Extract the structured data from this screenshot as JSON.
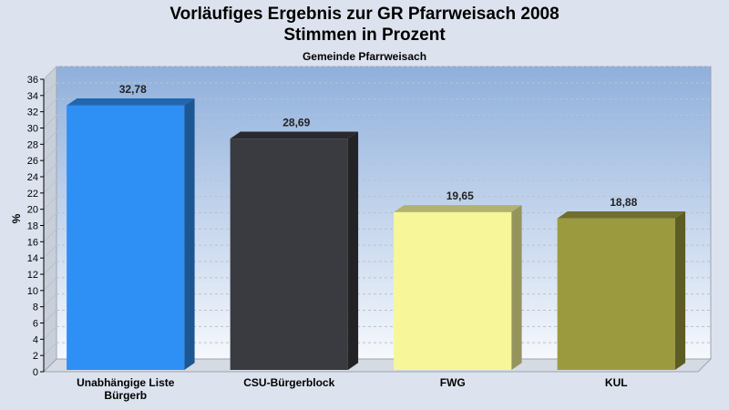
{
  "chart_data": {
    "type": "bar",
    "title_line1": "Vorläufiges Ergebnis zur GR Pfarrweisach 2008",
    "title_line2": "Stimmen in Prozent",
    "subtitle": "Gemeinde Pfarrweisach",
    "ylabel": "%",
    "xlabel": "",
    "ylim": [
      0,
      36
    ],
    "ytick_step": 2,
    "grid": true,
    "categories": [
      [
        "Unabhängige Liste",
        "Bürgerb"
      ],
      [
        "CSU-Bürgerblock"
      ],
      [
        "FWG"
      ],
      [
        "KUL"
      ]
    ],
    "values": [
      32.78,
      28.69,
      19.65,
      18.88
    ],
    "value_labels": [
      "32,78",
      "28,69",
      "19,65",
      "18,88"
    ],
    "colors": [
      "#2e8ff5",
      "#3a3b40",
      "#f7f79a",
      "#9c9a3e"
    ],
    "legend": "none"
  }
}
